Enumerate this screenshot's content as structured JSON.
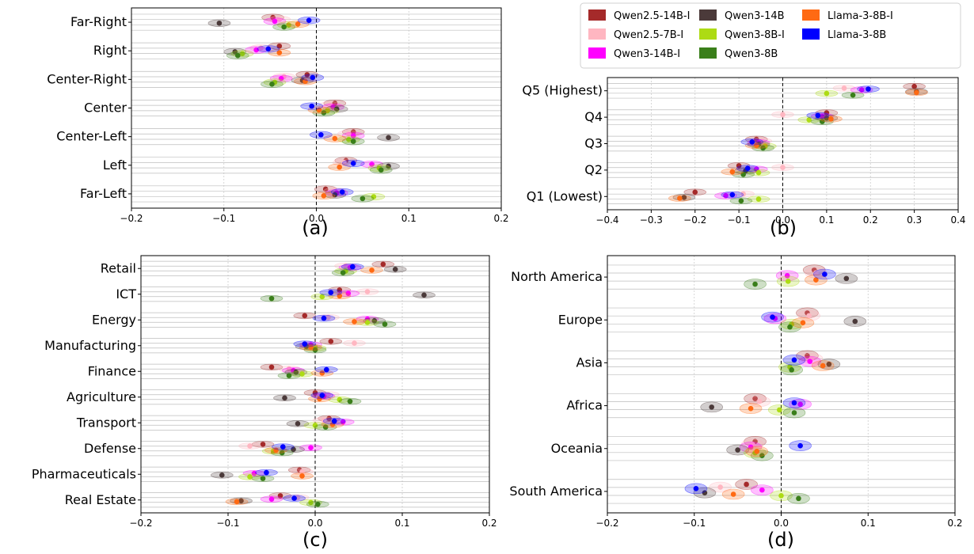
{
  "legend": [
    {
      "name": "Qwen2.5-14B-I",
      "color": "#A52A2A"
    },
    {
      "name": "Qwen2.5-7B-I",
      "color": "#FFB6C1"
    },
    {
      "name": "Qwen3-14B-I",
      "color": "#FF00FF"
    },
    {
      "name": "Qwen3-14B",
      "color": "#4B3A3A"
    },
    {
      "name": "Qwen3-8B-I",
      "color": "#ADDB14"
    },
    {
      "name": "Qwen3-8B",
      "color": "#3A7F1A"
    },
    {
      "name": "Llama-3-8B-I",
      "color": "#FF6A13"
    },
    {
      "name": "Llama-3-8B",
      "color": "#0000FF"
    }
  ],
  "chart_data": [
    {
      "type": "scatter",
      "panel_label": "(a)",
      "categories": [
        "Far-Right",
        "Right",
        "Center-Right",
        "Center",
        "Center-Left",
        "Left",
        "Far-Left"
      ],
      "xlim": [
        -0.2,
        0.2
      ],
      "xticks": [
        "−0.2",
        "−0.1",
        "0.0",
        "0.1",
        "0.2"
      ],
      "grid": true,
      "series": [
        {
          "name": "Qwen2.5-14B-I",
          "values": [
            -0.047,
            -0.04,
            -0.01,
            0.02,
            0.04,
            0.032,
            0.01
          ]
        },
        {
          "name": "Qwen2.5-7B-I",
          "values": [
            -0.04,
            -0.06,
            -0.035,
            0.015,
            0.035,
            0.03,
            0.02
          ]
        },
        {
          "name": "Qwen3-14B-I",
          "values": [
            -0.045,
            -0.065,
            -0.038,
            0.018,
            0.04,
            0.06,
            0.022
          ]
        },
        {
          "name": "Qwen3-14B",
          "values": [
            -0.105,
            -0.088,
            -0.015,
            0.022,
            0.078,
            0.078,
            0.02
          ]
        },
        {
          "name": "Qwen3-8B-I",
          "values": [
            -0.03,
            -0.08,
            -0.045,
            0.012,
            0.035,
            0.068,
            0.062
          ]
        },
        {
          "name": "Qwen3-8B",
          "values": [
            -0.035,
            -0.085,
            -0.048,
            0.008,
            0.04,
            0.07,
            0.05
          ]
        },
        {
          "name": "Llama-3-8B-I",
          "values": [
            -0.02,
            -0.04,
            -0.012,
            0.003,
            0.02,
            0.025,
            0.008
          ]
        },
        {
          "name": "Llama-3-8B",
          "values": [
            -0.008,
            -0.052,
            -0.004,
            -0.005,
            0.005,
            0.04,
            0.028
          ]
        }
      ]
    },
    {
      "type": "scatter",
      "panel_label": "(b)",
      "categories": [
        "Q5 (Highest)",
        "Q4",
        "Q3",
        "Q2",
        "Q1 (Lowest)"
      ],
      "xlim": [
        -0.4,
        0.4
      ],
      "xticks": [
        "−0.4",
        "−0.3",
        "−0.2",
        "−0.1",
        "0.0",
        "0.1",
        "0.2",
        "0.3",
        "0.4"
      ],
      "grid": true,
      "series": [
        {
          "name": "Qwen2.5-14B-I",
          "values": [
            0.3,
            0.1,
            -0.06,
            -0.1,
            -0.2
          ]
        },
        {
          "name": "Qwen2.5-7B-I",
          "values": [
            0.14,
            0.0,
            -0.05,
            0.0,
            -0.09
          ]
        },
        {
          "name": "Qwen3-14B-I",
          "values": [
            0.18,
            0.09,
            -0.055,
            -0.06,
            -0.13
          ]
        },
        {
          "name": "Qwen3-14B",
          "values": [
            0.305,
            0.1,
            -0.055,
            -0.085,
            -0.225
          ]
        },
        {
          "name": "Qwen3-8B-I",
          "values": [
            0.1,
            0.06,
            -0.04,
            -0.055,
            -0.055
          ]
        },
        {
          "name": "Qwen3-8B",
          "values": [
            0.16,
            0.09,
            -0.045,
            -0.09,
            -0.095
          ]
        },
        {
          "name": "Llama-3-8B-I",
          "values": [
            0.305,
            0.11,
            -0.06,
            -0.115,
            -0.235
          ]
        },
        {
          "name": "Llama-3-8B",
          "values": [
            0.195,
            0.08,
            -0.07,
            -0.08,
            -0.115
          ]
        }
      ]
    },
    {
      "type": "scatter",
      "panel_label": "(c)",
      "categories": [
        "Retail",
        "ICT",
        "Energy",
        "Manufacturing",
        "Finance",
        "Agriculture",
        "Transport",
        "Defense",
        "Pharmaceuticals",
        "Real Estate"
      ],
      "xlim": [
        -0.2,
        0.2
      ],
      "xticks": [
        "−0.2",
        "−0.1",
        "0.0",
        "0.1",
        "0.2"
      ],
      "grid": true,
      "series": [
        {
          "name": "Qwen2.5-14B-I",
          "values": [
            0.078,
            0.028,
            -0.012,
            0.018,
            -0.05,
            0.0,
            0.016,
            -0.06,
            -0.018,
            -0.04
          ]
        },
        {
          "name": "Qwen2.5-7B-I",
          "values": [
            0.035,
            0.06,
            0.015,
            0.045,
            -0.03,
            0.015,
            0.01,
            -0.075,
            -0.015,
            -0.02
          ]
        },
        {
          "name": "Qwen3-14B-I",
          "values": [
            0.04,
            0.038,
            0.06,
            -0.005,
            -0.025,
            0.01,
            0.032,
            -0.005,
            -0.07,
            -0.05
          ]
        },
        {
          "name": "Qwen3-14B",
          "values": [
            0.092,
            0.125,
            0.068,
            -0.01,
            -0.022,
            -0.035,
            -0.02,
            -0.025,
            -0.107,
            -0.085
          ]
        },
        {
          "name": "Qwen3-8B-I",
          "values": [
            0.035,
            0.008,
            0.06,
            0.0,
            -0.015,
            0.028,
            0.0,
            -0.048,
            -0.075,
            -0.005
          ]
        },
        {
          "name": "Qwen3-8B",
          "values": [
            0.032,
            -0.05,
            0.08,
            0.0,
            -0.03,
            0.04,
            0.012,
            -0.038,
            -0.06,
            0.003
          ]
        },
        {
          "name": "Llama-3-8B-I",
          "values": [
            0.065,
            0.028,
            0.045,
            -0.005,
            0.008,
            0.005,
            0.02,
            -0.045,
            -0.015,
            -0.09
          ]
        },
        {
          "name": "Llama-3-8B",
          "values": [
            0.043,
            0.018,
            0.01,
            -0.012,
            0.013,
            0.008,
            0.022,
            -0.037,
            -0.056,
            -0.024
          ]
        }
      ]
    },
    {
      "type": "scatter",
      "panel_label": "(d)",
      "categories": [
        "North America",
        "Europe",
        "Asia",
        "Africa",
        "Oceania",
        "South America"
      ],
      "xlim": [
        -0.2,
        0.2
      ],
      "xticks": [
        "−0.2",
        "−0.1",
        "0.0",
        "0.1",
        "0.2"
      ],
      "grid": true,
      "series": [
        {
          "name": "Qwen2.5-14B-I",
          "values": [
            0.038,
            0.03,
            0.03,
            -0.03,
            -0.03,
            -0.04
          ]
        },
        {
          "name": "Qwen2.5-7B-I",
          "values": [
            0.04,
            0.032,
            0.035,
            -0.025,
            -0.033,
            -0.07
          ]
        },
        {
          "name": "Qwen3-14B-I",
          "values": [
            0.007,
            -0.007,
            0.033,
            0.022,
            -0.035,
            -0.022
          ]
        },
        {
          "name": "Qwen3-14B",
          "values": [
            0.075,
            0.085,
            0.055,
            -0.08,
            -0.05,
            -0.088
          ]
        },
        {
          "name": "Qwen3-8B-I",
          "values": [
            0.008,
            0.012,
            0.01,
            -0.002,
            -0.03,
            0.0
          ]
        },
        {
          "name": "Qwen3-8B",
          "values": [
            -0.03,
            0.01,
            0.012,
            0.015,
            -0.022,
            0.02
          ]
        },
        {
          "name": "Llama-3-8B-I",
          "values": [
            0.04,
            0.025,
            0.048,
            -0.035,
            -0.028,
            -0.055
          ]
        },
        {
          "name": "Llama-3-8B",
          "values": [
            0.05,
            -0.01,
            0.015,
            0.015,
            0.022,
            -0.098
          ]
        }
      ]
    }
  ]
}
